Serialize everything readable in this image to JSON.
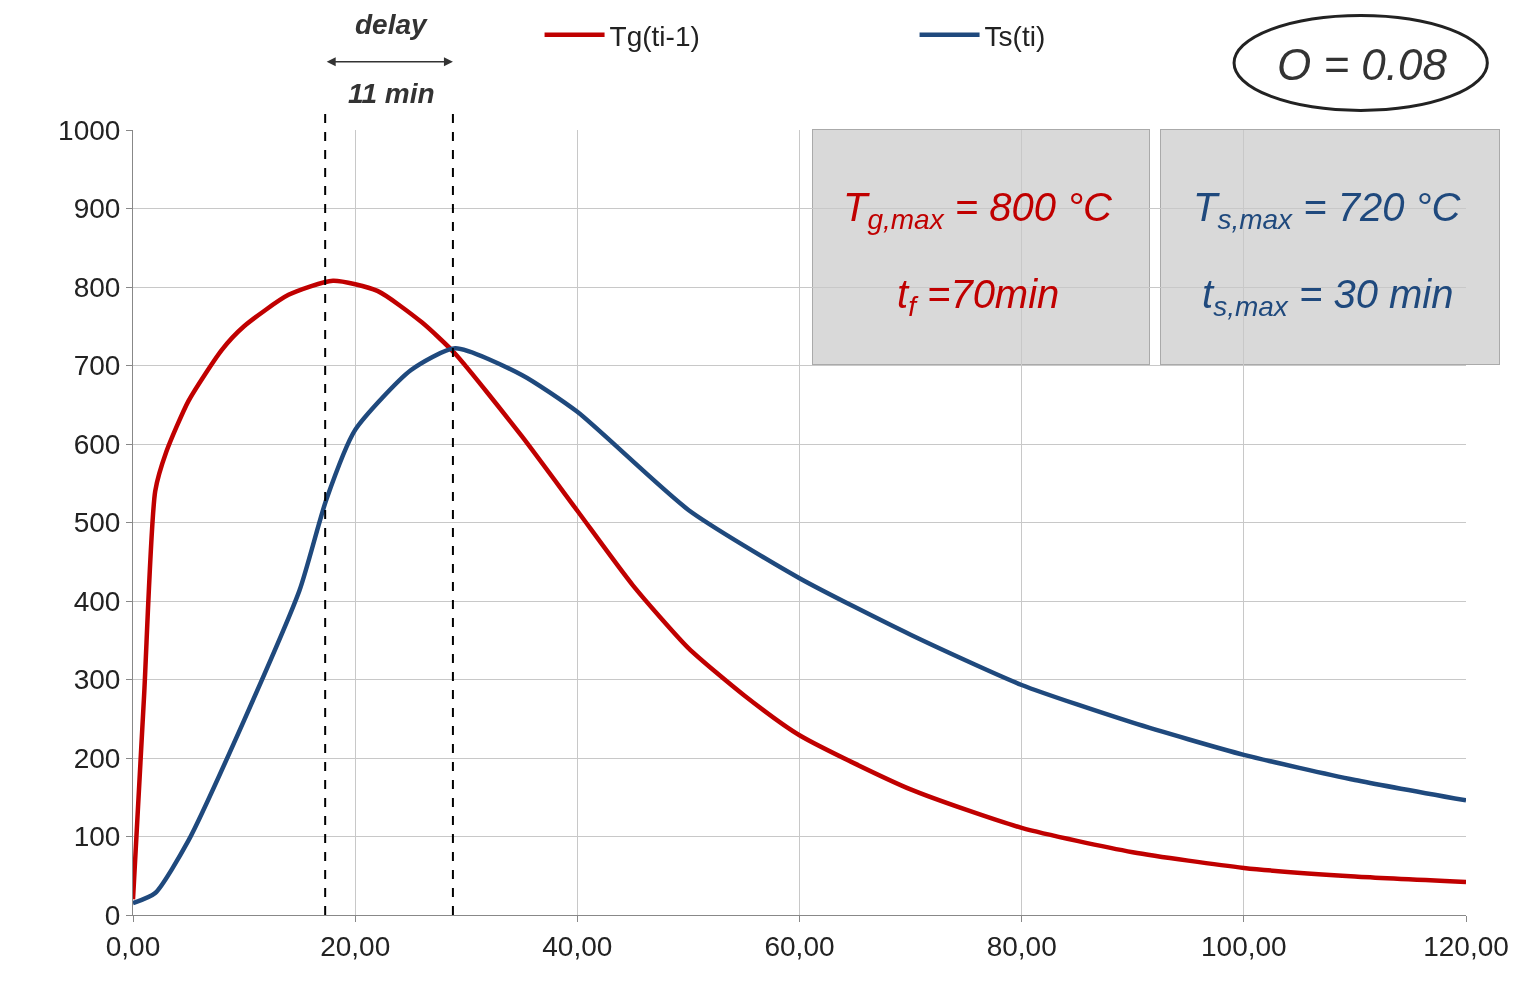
{
  "chart_data": {
    "type": "line",
    "line_style": "solid",
    "marker": "none",
    "grid": true,
    "legend": "top",
    "xlim": [
      0,
      120
    ],
    "ylim": [
      0,
      1000
    ],
    "xticks": [
      {
        "value": 0,
        "label": "0,00"
      },
      {
        "value": 20,
        "label": "20,00"
      },
      {
        "value": 40,
        "label": "40,00"
      },
      {
        "value": 60,
        "label": "60,00"
      },
      {
        "value": 80,
        "label": "80,00"
      },
      {
        "value": 100,
        "label": "100,00"
      },
      {
        "value": 120,
        "label": "120,00"
      }
    ],
    "yticks": [
      0,
      100,
      200,
      300,
      400,
      500,
      600,
      700,
      800,
      900,
      1000
    ],
    "series": [
      {
        "name": "Tg(ti-1)",
        "color": "#c00000",
        "x": [
          0,
          1,
          2,
          3,
          5,
          8,
          10,
          14,
          18,
          22,
          26,
          29,
          35,
          40,
          45,
          50,
          55,
          60,
          70,
          80,
          90,
          100,
          110,
          120
        ],
        "values": [
          20,
          280,
          540,
          590,
          655,
          720,
          750,
          790,
          808,
          795,
          755,
          715,
          610,
          515,
          420,
          340,
          280,
          229,
          160,
          111,
          80,
          60,
          49,
          42
        ]
      },
      {
        "name": "Ts(ti)",
        "color": "#1f497d",
        "x": [
          0,
          2,
          5,
          10,
          15,
          17.4,
          20,
          25,
          29,
          35,
          40,
          50,
          60,
          70,
          80,
          90,
          100,
          110,
          120
        ],
        "values": [
          15,
          28,
          95,
          248,
          414,
          529,
          618,
          694,
          722,
          688,
          641,
          516,
          429,
          357,
          293,
          245,
          204,
          172,
          146
        ]
      }
    ],
    "ref_lines": [
      {
        "axis": "x",
        "value": 17.3,
        "line_style": "dashed",
        "color": "#000000"
      },
      {
        "axis": "x",
        "value": 28.8,
        "line_style": "dashed",
        "color": "#000000"
      }
    ],
    "annotations": [
      "delay",
      "11 min",
      "T$_{g,max}$ = 800 °C",
      "t$_{f}$ =70min",
      "T$_{s,max}$ = 720 °C",
      "t$_{s,max}$ = 30 min",
      "O = 0.08"
    ]
  }
}
